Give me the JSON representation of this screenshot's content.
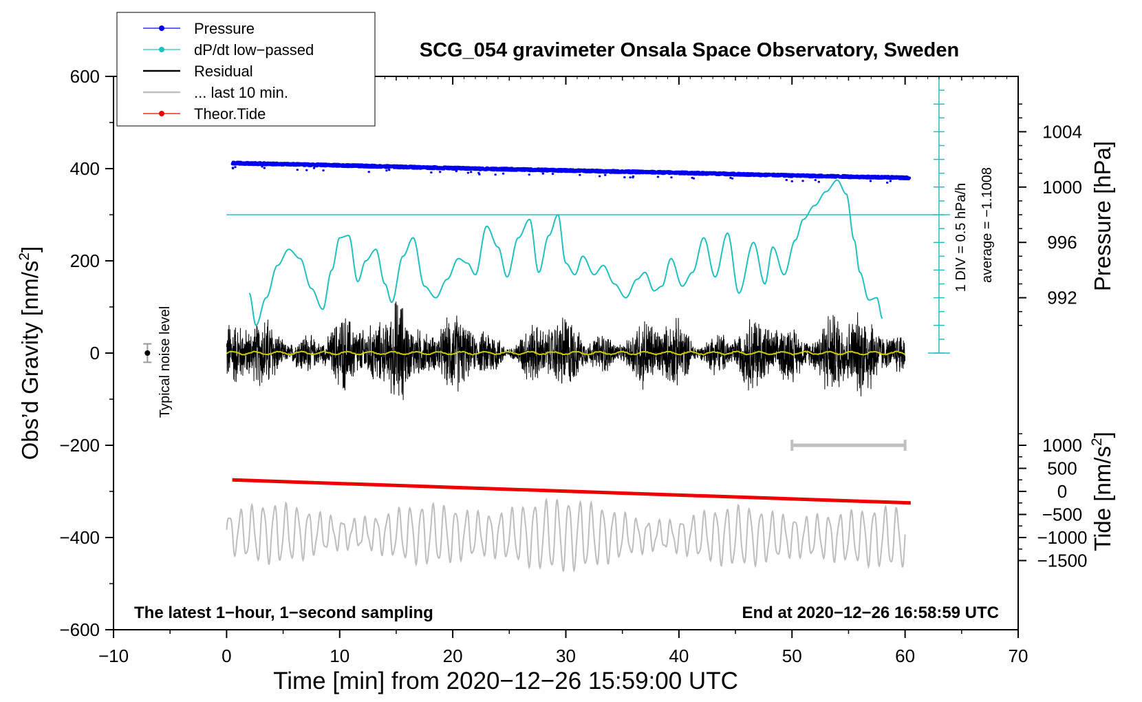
{
  "chart_data": {
    "type": "line",
    "title": "SCG_054 gravimeter Onsala Space Observatory, Sweden",
    "xlabel": "Time [min] from 2020−12−26 15:59:00 UTC",
    "ylabel": "Obs'd Gravity [nm/s2]",
    "xlim": [
      -10,
      70
    ],
    "ylim": [
      -600,
      600
    ],
    "x_ticks": [
      -10,
      0,
      10,
      20,
      30,
      40,
      50,
      60,
      70
    ],
    "x_tick_labels": [
      "−10",
      "0",
      "10",
      "20",
      "30",
      "40",
      "50",
      "60",
      "70"
    ],
    "y_ticks": [
      -600,
      -400,
      -200,
      0,
      200,
      400,
      600
    ],
    "y_tick_labels": [
      "−600",
      "−400",
      "−200",
      "0",
      "200",
      "400",
      "600"
    ],
    "ylabel_parts": {
      "main": "Obs’d Gravity [nm/s",
      "sup": "2",
      "end": "]"
    },
    "right_axis_pressure": {
      "label": "Pressure [hPa]",
      "ticks": [
        992,
        996,
        1000,
        1004
      ],
      "gravity_at_992": 120,
      "gravity_per_hpa": 30
    },
    "right_axis_tide": {
      "label_parts": {
        "main": "Tide [nm/s",
        "sup": "2",
        "end": "]"
      },
      "ticks": [
        -1500,
        -1000,
        -500,
        0,
        500,
        1000
      ],
      "tick_labels": [
        "−1500",
        "−1000",
        "−500",
        "0",
        "500",
        "1000"
      ],
      "gravity_at_0": -300,
      "gravity_per_unit": 0.1
    },
    "dpdt_scale": {
      "label": "1 DIV = 0.5 hPa/h",
      "average_label": "average = −1.1008",
      "x": 63,
      "y_range": [
        0,
        600
      ],
      "ref_level": 300,
      "div_step": 30
    },
    "legend": {
      "position": "top-left",
      "entries": [
        {
          "label": "Pressure",
          "color": "#0000ee",
          "marker": "dot"
        },
        {
          "label": "dP/dt low−passed",
          "color": "#20c0c0",
          "marker": "dot"
        },
        {
          "label": "Residual",
          "color": "#000000",
          "marker": "line"
        },
        {
          "label": "... last 10 min.",
          "color": "#c0c0c0",
          "marker": "line"
        },
        {
          "label": "Theor.Tide",
          "color": "#ee0000",
          "marker": "dot"
        }
      ]
    },
    "annotations": {
      "bottom_left": "The latest 1−hour, 1−second sampling",
      "bottom_right": "End at 2020−12−26 16:58:59 UTC",
      "noise_label": "Typical noise level",
      "noise_marker": {
        "x": -7,
        "y": 0,
        "err": 20
      },
      "last10_bar": {
        "x0": 50,
        "x1": 60,
        "y": -200
      }
    },
    "series": [
      {
        "name": "Pressure",
        "color": "#0000ee",
        "x": [
          0.5,
          10,
          20,
          30,
          40,
          50,
          60.3
        ],
        "y": [
          412,
          407,
          401,
          396,
          391,
          385,
          380
        ]
      },
      {
        "name": "dP/dt low−passed",
        "color": "#20c0c0",
        "x": [
          2,
          2.6,
          3.5,
          4.5,
          5.5,
          6.5,
          7.5,
          8.5,
          9.3,
          10,
          10.8,
          11.6,
          12.3,
          13.2,
          14,
          14.6,
          15.6,
          16.5,
          17.5,
          18.5,
          19.5,
          20.5,
          21.3,
          22,
          23,
          24,
          24.8,
          25.8,
          26.8,
          27.6,
          28.5,
          29.3,
          30,
          30.8,
          31.5,
          32.5,
          33.3,
          34.3,
          35.3,
          36.3,
          37,
          37.8,
          38.5,
          39.3,
          40.3,
          41.2,
          42.2,
          43.2,
          44.3,
          45.3,
          46.6,
          47.6,
          48.3,
          49.3,
          50.3,
          51,
          52,
          53,
          54,
          54.8,
          55.5,
          56,
          56.8,
          57.5,
          58
        ],
        "y": [
          130,
          60,
          120,
          190,
          225,
          205,
          140,
          95,
          180,
          250,
          255,
          155,
          200,
          225,
          150,
          110,
          210,
          250,
          145,
          120,
          160,
          205,
          195,
          170,
          275,
          230,
          165,
          250,
          290,
          175,
          255,
          300,
          195,
          170,
          210,
          170,
          190,
          150,
          120,
          160,
          175,
          135,
          145,
          205,
          145,
          175,
          250,
          165,
          260,
          130,
          240,
          150,
          230,
          170,
          245,
          290,
          320,
          350,
          375,
          345,
          245,
          175,
          115,
          120,
          75
        ]
      },
      {
        "name": "Residual",
        "color": "#000000",
        "x": [
          0,
          60
        ],
        "y": [
          0,
          0
        ]
      },
      {
        "name": "... last 10 min.",
        "color": "#c0c0c0",
        "x": [
          0,
          60
        ],
        "y": [
          -390,
          -400
        ]
      },
      {
        "name": "Theor.Tide",
        "color": "#ee0000",
        "x": [
          0.5,
          60.5
        ],
        "y": [
          -275,
          -325
        ]
      }
    ]
  }
}
